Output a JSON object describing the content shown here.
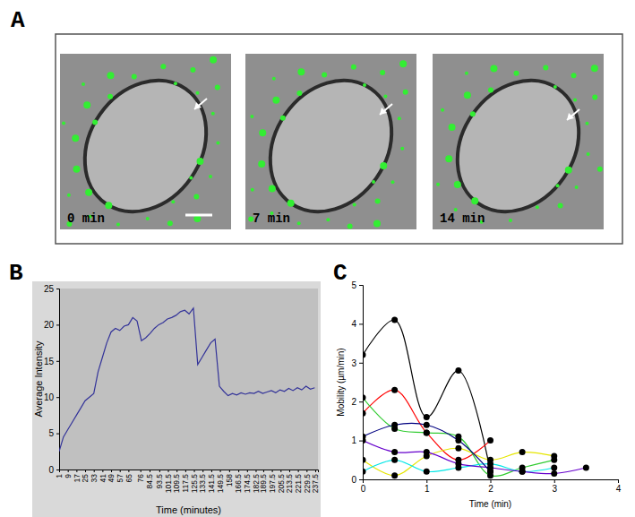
{
  "panel_a": {
    "label": "A",
    "frames": [
      {
        "label": "0 min"
      },
      {
        "label": "7 min"
      },
      {
        "label": "14 min"
      }
    ]
  },
  "chart_data": [
    {
      "type": "line",
      "title": "B",
      "x_label": "Time (minutes)",
      "y_label": "Average Intensity",
      "x": [
        1,
        5,
        9,
        13,
        17,
        21,
        25,
        29,
        33,
        37,
        41,
        45,
        49,
        53,
        57,
        61,
        65,
        69,
        73,
        77,
        81,
        85,
        89,
        93,
        97,
        101,
        105,
        109,
        113,
        117,
        121,
        125,
        129,
        133,
        137,
        141,
        145,
        149,
        153,
        157,
        161,
        165,
        169,
        173,
        177,
        181,
        185,
        189,
        193,
        197,
        201,
        205,
        209,
        213,
        217,
        221,
        225,
        229,
        233,
        237
      ],
      "values": [
        2.5,
        4.5,
        5.5,
        6.5,
        7.5,
        8.5,
        9.5,
        10,
        10.5,
        13.5,
        15.5,
        17.5,
        19,
        19.5,
        19.2,
        19.8,
        20,
        21,
        20.5,
        17.8,
        18.2,
        18.8,
        19.5,
        20,
        20.3,
        20.8,
        21,
        21.3,
        21.8,
        22,
        21.5,
        22.3,
        14.5,
        15.5,
        16.5,
        17.5,
        18,
        11.5,
        10.8,
        10.2,
        10.5,
        10.3,
        10.6,
        10.4,
        10.6,
        10.5,
        10.8,
        10.5,
        10.7,
        10.9,
        10.6,
        11,
        10.8,
        11.2,
        10.9,
        11.3,
        11,
        11.5,
        11.1,
        11.3
      ],
      "color": "#333399",
      "xlim": [
        1,
        240
      ],
      "ylim": [
        0,
        25
      ],
      "xticks": [
        1,
        9,
        17,
        25,
        33,
        41,
        49,
        57,
        65,
        76,
        84.5,
        93.5,
        101.5,
        109.5,
        117.5,
        125.5,
        133.5,
        141.5,
        149.5,
        158,
        166.5,
        174.5,
        182.5,
        189.5,
        197.5,
        205.5,
        213.5,
        221.5,
        229.5,
        237.5
      ],
      "yticks": [
        0,
        5,
        10,
        15,
        20,
        25
      ],
      "grid": false
    },
    {
      "type": "line",
      "title": "C",
      "x_label": "Time (min)",
      "y_label": "Mobility (µm/min)",
      "xlim": [
        0,
        4
      ],
      "ylim": [
        0,
        5
      ],
      "xticks": [
        0,
        1,
        2,
        3,
        4
      ],
      "yticks": [
        0,
        1,
        2,
        3,
        4,
        5
      ],
      "marker": "circle",
      "grid": false,
      "series": [
        {
          "color": "#000000",
          "x": [
            0,
            0.5,
            1,
            1.5,
            2
          ],
          "values": [
            3.2,
            4.1,
            1.6,
            2.8,
            0.2
          ]
        },
        {
          "color": "#ff0000",
          "x": [
            0,
            0.5,
            1,
            1.5,
            2
          ],
          "values": [
            1.7,
            2.3,
            1.2,
            0.5,
            1.0
          ]
        },
        {
          "color": "#e6e600",
          "x": [
            0,
            0.5,
            1,
            1.5,
            2,
            2.5,
            3
          ],
          "values": [
            0.5,
            0.1,
            0.6,
            0.8,
            0.5,
            0.7,
            0.6
          ]
        },
        {
          "color": "#33cc33",
          "x": [
            0,
            0.5,
            1,
            1.5,
            2,
            2.5,
            3
          ],
          "values": [
            2.1,
            1.3,
            1.2,
            1.1,
            0.1,
            0.3,
            0.5
          ]
        },
        {
          "color": "#00e6e6",
          "x": [
            0,
            0.5,
            1,
            1.5,
            2,
            2.5,
            3
          ],
          "values": [
            0.2,
            0.5,
            0.2,
            0.3,
            0.4,
            0.2,
            0.3
          ]
        },
        {
          "color": "#6600cc",
          "x": [
            0,
            0.5,
            1,
            1.5,
            2,
            2.5,
            3,
            3.5
          ],
          "values": [
            1.0,
            0.7,
            0.7,
            0.4,
            0.3,
            0.2,
            0.15,
            0.3
          ]
        },
        {
          "color": "#000080",
          "x": [
            0,
            0.5,
            1,
            1.5,
            2
          ],
          "values": [
            1.1,
            1.4,
            1.4,
            1.0,
            0.2
          ]
        }
      ]
    }
  ]
}
